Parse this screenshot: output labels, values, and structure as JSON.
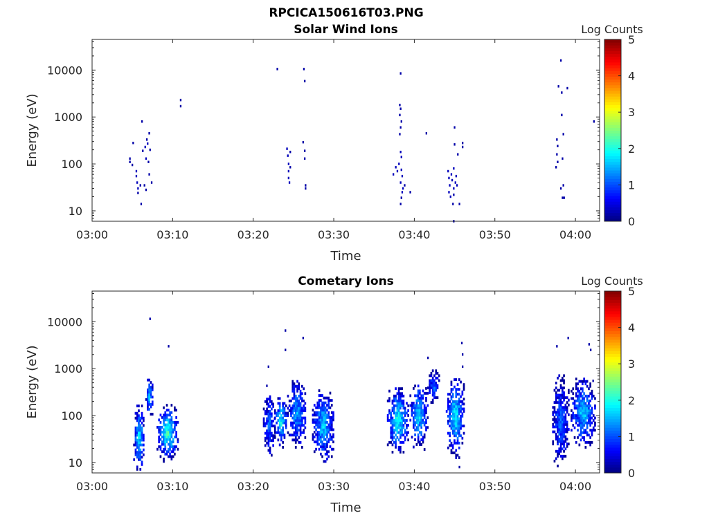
{
  "figure": {
    "title": "RPCICA150616T03.PNG"
  },
  "colors": {
    "colormap": [
      "#00007f",
      "#0000ff",
      "#007fff",
      "#00ffff",
      "#7fff7f",
      "#ffff00",
      "#ff7f00",
      "#ff0000",
      "#7f0000"
    ],
    "axis": "#262626"
  },
  "chart_data": [
    {
      "type": "heatmap",
      "title": "Solar Wind Ions",
      "xlabel": "Time",
      "ylabel": "Energy (eV)",
      "y_scale": "log",
      "xlim": [
        "03:00",
        "04:03"
      ],
      "ylim": [
        6,
        45000
      ],
      "x_ticks": [
        "03:00",
        "03:10",
        "03:20",
        "03:30",
        "03:40",
        "03:50",
        "04:00"
      ],
      "y_ticks": [
        "10",
        "100",
        "1000",
        "10000"
      ],
      "colorbar": {
        "label": "Log Counts",
        "range": [
          0,
          5
        ],
        "ticks": [
          "0",
          "1",
          "2",
          "3",
          "4",
          "5"
        ]
      },
      "cells": [
        {
          "t": "03:04.6",
          "e": 110,
          "v": 0.2
        },
        {
          "t": "03:04.6",
          "e": 130,
          "v": 0.2
        },
        {
          "t": "03:04.9",
          "e": 95,
          "v": 0.2
        },
        {
          "t": "03:05.0",
          "e": 280,
          "v": 0.2
        },
        {
          "t": "03:05.4",
          "e": 70,
          "v": 0.3
        },
        {
          "t": "03:05.4",
          "e": 55,
          "v": 0.3
        },
        {
          "t": "03:05.5",
          "e": 40,
          "v": 0.3
        },
        {
          "t": "03:05.6",
          "e": 30,
          "v": 0.3
        },
        {
          "t": "03:05.6",
          "e": 24,
          "v": 0.2
        },
        {
          "t": "03:05.9",
          "e": 35,
          "v": 0.2
        },
        {
          "t": "03:06.0",
          "e": 14,
          "v": 0.2
        },
        {
          "t": "03:06.1",
          "e": 800,
          "v": 0.2
        },
        {
          "t": "03:06.2",
          "e": 190,
          "v": 0.2
        },
        {
          "t": "03:06.4",
          "e": 35,
          "v": 0.2
        },
        {
          "t": "03:06.5",
          "e": 230,
          "v": 0.3
        },
        {
          "t": "03:06.6",
          "e": 130,
          "v": 0.3
        },
        {
          "t": "03:06.7",
          "e": 330,
          "v": 0.2
        },
        {
          "t": "03:06.8",
          "e": 270,
          "v": 0.3
        },
        {
          "t": "03:06.9",
          "e": 110,
          "v": 0.2
        },
        {
          "t": "03:07.0",
          "e": 450,
          "v": 0.2
        },
        {
          "t": "03:07.0",
          "e": 60,
          "v": 0.2
        },
        {
          "t": "03:07.1",
          "e": 200,
          "v": 0.2
        },
        {
          "t": "03:07.3",
          "e": 40,
          "v": 0.2
        },
        {
          "t": "03:06.6",
          "e": 28,
          "v": 0.2
        },
        {
          "t": "03:10.9",
          "e": 2300,
          "v": 0.2
        },
        {
          "t": "03:10.9",
          "e": 1700,
          "v": 0.2
        },
        {
          "t": "03:22.9",
          "e": 10500,
          "v": 0.2
        },
        {
          "t": "03:24.1",
          "e": 210,
          "v": 0.3
        },
        {
          "t": "03:24.2",
          "e": 150,
          "v": 0.3
        },
        {
          "t": "03:24.3",
          "e": 100,
          "v": 0.3
        },
        {
          "t": "03:24.3",
          "e": 70,
          "v": 0.3
        },
        {
          "t": "03:24.3",
          "e": 50,
          "v": 0.3
        },
        {
          "t": "03:24.4",
          "e": 40,
          "v": 0.3
        },
        {
          "t": "03:24.5",
          "e": 180,
          "v": 0.2
        },
        {
          "t": "03:24.5",
          "e": 85,
          "v": 0.2
        },
        {
          "t": "03:26.2",
          "e": 10500,
          "v": 0.2
        },
        {
          "t": "03:26.3",
          "e": 5800,
          "v": 0.2
        },
        {
          "t": "03:26.1",
          "e": 290,
          "v": 0.2
        },
        {
          "t": "03:26.3",
          "e": 190,
          "v": 0.2
        },
        {
          "t": "03:26.3",
          "e": 130,
          "v": 0.2
        },
        {
          "t": "03:26.4",
          "e": 35,
          "v": 0.2
        },
        {
          "t": "03:26.4",
          "e": 30,
          "v": 0.2
        },
        {
          "t": "03:37.3",
          "e": 60,
          "v": 0.3
        },
        {
          "t": "03:37.6",
          "e": 85,
          "v": 0.3
        },
        {
          "t": "03:37.8",
          "e": 70,
          "v": 0.3
        },
        {
          "t": "03:38.2",
          "e": 8500,
          "v": 0.2
        },
        {
          "t": "03:38.1",
          "e": 1800,
          "v": 0.2
        },
        {
          "t": "03:38.2",
          "e": 1500,
          "v": 0.2
        },
        {
          "t": "03:38.1",
          "e": 1100,
          "v": 0.2
        },
        {
          "t": "03:38.3",
          "e": 800,
          "v": 0.2
        },
        {
          "t": "03:38.2",
          "e": 600,
          "v": 0.2
        },
        {
          "t": "03:38.1",
          "e": 430,
          "v": 0.2
        },
        {
          "t": "03:38.2",
          "e": 180,
          "v": 0.3
        },
        {
          "t": "03:38.3",
          "e": 140,
          "v": 0.3
        },
        {
          "t": "03:38.0",
          "e": 100,
          "v": 0.3
        },
        {
          "t": "03:38.3",
          "e": 75,
          "v": 0.3
        },
        {
          "t": "03:38.4",
          "e": 55,
          "v": 0.3
        },
        {
          "t": "03:38.2",
          "e": 40,
          "v": 0.3
        },
        {
          "t": "03:38.5",
          "e": 30,
          "v": 0.3
        },
        {
          "t": "03:38.4",
          "e": 25,
          "v": 0.3
        },
        {
          "t": "03:38.3",
          "e": 19,
          "v": 0.2
        },
        {
          "t": "03:38.2",
          "e": 14,
          "v": 0.2
        },
        {
          "t": "03:38.7",
          "e": 35,
          "v": 0.2
        },
        {
          "t": "03:39.4",
          "e": 25,
          "v": 0.2
        },
        {
          "t": "03:41.4",
          "e": 450,
          "v": 0.2
        },
        {
          "t": "03:44.1",
          "e": 70,
          "v": 0.3
        },
        {
          "t": "03:44.2",
          "e": 50,
          "v": 0.3
        },
        {
          "t": "03:44.3",
          "e": 35,
          "v": 0.3
        },
        {
          "t": "03:44.2",
          "e": 25,
          "v": 0.3
        },
        {
          "t": "03:44.4",
          "e": 20,
          "v": 0.3
        },
        {
          "t": "03:44.5",
          "e": 60,
          "v": 0.3
        },
        {
          "t": "03:44.6",
          "e": 45,
          "v": 0.3
        },
        {
          "t": "03:44.8",
          "e": 80,
          "v": 0.3
        },
        {
          "t": "03:44.8",
          "e": 30,
          "v": 0.3
        },
        {
          "t": "03:45.0",
          "e": 40,
          "v": 0.3
        },
        {
          "t": "03:45.1",
          "e": 55,
          "v": 0.3
        },
        {
          "t": "03:45.2",
          "e": 35,
          "v": 0.3
        },
        {
          "t": "03:44.9",
          "e": 600,
          "v": 0.2
        },
        {
          "t": "03:44.8",
          "e": 22,
          "v": 0.2
        },
        {
          "t": "03:44.7",
          "e": 14,
          "v": 0.2
        },
        {
          "t": "03:45.5",
          "e": 14,
          "v": 0.2
        },
        {
          "t": "03:44.8",
          "e": 6,
          "v": 0.2
        },
        {
          "t": "03:44.9",
          "e": 260,
          "v": 0.2
        },
        {
          "t": "03:45.3",
          "e": 160,
          "v": 0.2
        },
        {
          "t": "03:45.9",
          "e": 280,
          "v": 0.2
        },
        {
          "t": "03:45.9",
          "e": 230,
          "v": 0.2
        },
        {
          "t": "03:57.8",
          "e": 4500,
          "v": 0.2
        },
        {
          "t": "03:58.1",
          "e": 16000,
          "v": 0.2
        },
        {
          "t": "03:58.2",
          "e": 3300,
          "v": 0.2
        },
        {
          "t": "03:58.9",
          "e": 4100,
          "v": 0.2
        },
        {
          "t": "03:58.2",
          "e": 1100,
          "v": 0.2
        },
        {
          "t": "03:57.6",
          "e": 330,
          "v": 0.2
        },
        {
          "t": "03:57.7",
          "e": 240,
          "v": 0.2
        },
        {
          "t": "03:57.6",
          "e": 160,
          "v": 0.2
        },
        {
          "t": "03:57.7",
          "e": 110,
          "v": 0.2
        },
        {
          "t": "03:57.5",
          "e": 85,
          "v": 0.2
        },
        {
          "t": "03:58.4",
          "e": 430,
          "v": 0.2
        },
        {
          "t": "03:58.3",
          "e": 130,
          "v": 0.2
        },
        {
          "t": "03:58.1",
          "e": 30,
          "v": 0.2
        },
        {
          "t": "03:58.4",
          "e": 35,
          "v": 0.2
        },
        {
          "t": "03:58.3",
          "e": 19,
          "v": 0.2
        },
        {
          "t": "03:58.5",
          "e": 19,
          "v": 0.2
        },
        {
          "t": "04:02.2",
          "e": 800,
          "v": 0.2
        }
      ]
    },
    {
      "type": "heatmap",
      "title": "Cometary Ions",
      "xlabel": "Time",
      "ylabel": "Energy (eV)",
      "y_scale": "log",
      "xlim": [
        "03:00",
        "04:03"
      ],
      "ylim": [
        6,
        45000
      ],
      "x_ticks": [
        "03:00",
        "03:10",
        "03:20",
        "03:30",
        "03:40",
        "03:50",
        "04:00"
      ],
      "y_ticks": [
        "10",
        "100",
        "1000",
        "10000"
      ],
      "colorbar": {
        "label": "Log Counts",
        "range": [
          0,
          5
        ],
        "ticks": [
          "0",
          "1",
          "2",
          "3",
          "4",
          "5"
        ]
      },
      "blobs": [
        {
          "t0": "03:05.1",
          "t1": "03:06.4",
          "e0": 6,
          "e1": 180,
          "peak": 1.8
        },
        {
          "t0": "03:06.6",
          "t1": "03:07.5",
          "e0": 80,
          "e1": 700,
          "peak": 1.6
        },
        {
          "t0": "03:08.0",
          "t1": "03:10.6",
          "e0": 10,
          "e1": 160,
          "peak": 2.2
        },
        {
          "t0": "03:21.2",
          "t1": "03:22.6",
          "e0": 12,
          "e1": 300,
          "peak": 1.2
        },
        {
          "t0": "03:22.6",
          "t1": "03:24.1",
          "e0": 20,
          "e1": 260,
          "peak": 2.0
        },
        {
          "t0": "03:24.2",
          "t1": "03:26.5",
          "e0": 20,
          "e1": 600,
          "peak": 1.5
        },
        {
          "t0": "03:27.3",
          "t1": "03:29.9",
          "e0": 10,
          "e1": 350,
          "peak": 1.7
        },
        {
          "t0": "03:36.6",
          "t1": "03:39.2",
          "e0": 14,
          "e1": 400,
          "peak": 2.0
        },
        {
          "t0": "03:39.4",
          "t1": "03:41.6",
          "e0": 18,
          "e1": 500,
          "peak": 1.8
        },
        {
          "t0": "03:41.6",
          "t1": "03:43.0",
          "e0": 180,
          "e1": 900,
          "peak": 1.2
        },
        {
          "t0": "03:43.9",
          "t1": "03:46.1",
          "e0": 12,
          "e1": 700,
          "peak": 1.9
        },
        {
          "t0": "03:57.1",
          "t1": "03:59.1",
          "e0": 8,
          "e1": 700,
          "peak": 1.2
        },
        {
          "t0": "03:59.4",
          "t1": "04:02.4",
          "e0": 20,
          "e1": 600,
          "peak": 1.7
        }
      ],
      "cells": [
        {
          "t": "03:07.1",
          "e": 11500,
          "v": 0.2
        },
        {
          "t": "03:09.4",
          "e": 3000,
          "v": 0.2
        },
        {
          "t": "03:23.9",
          "e": 6500,
          "v": 0.2
        },
        {
          "t": "03:23.9",
          "e": 2500,
          "v": 0.2
        },
        {
          "t": "03:26.1",
          "e": 4500,
          "v": 0.2
        },
        {
          "t": "03:21.8",
          "e": 1100,
          "v": 0.2
        },
        {
          "t": "03:21.6",
          "e": 430,
          "v": 0.2
        },
        {
          "t": "03:41.6",
          "e": 1700,
          "v": 0.2
        },
        {
          "t": "03:45.8",
          "e": 3500,
          "v": 0.2
        },
        {
          "t": "03:45.9",
          "e": 2000,
          "v": 0.2
        },
        {
          "t": "03:45.9",
          "e": 1100,
          "v": 0.2
        },
        {
          "t": "03:45.5",
          "e": 8,
          "v": 0.2
        },
        {
          "t": "03:57.6",
          "e": 3000,
          "v": 0.2
        },
        {
          "t": "03:59.0",
          "e": 4500,
          "v": 0.2
        },
        {
          "t": "04:01.6",
          "e": 3300,
          "v": 0.2
        },
        {
          "t": "04:01.8",
          "e": 2500,
          "v": 0.2
        },
        {
          "t": "04:02.1",
          "e": 550,
          "v": 0.2
        }
      ]
    }
  ]
}
